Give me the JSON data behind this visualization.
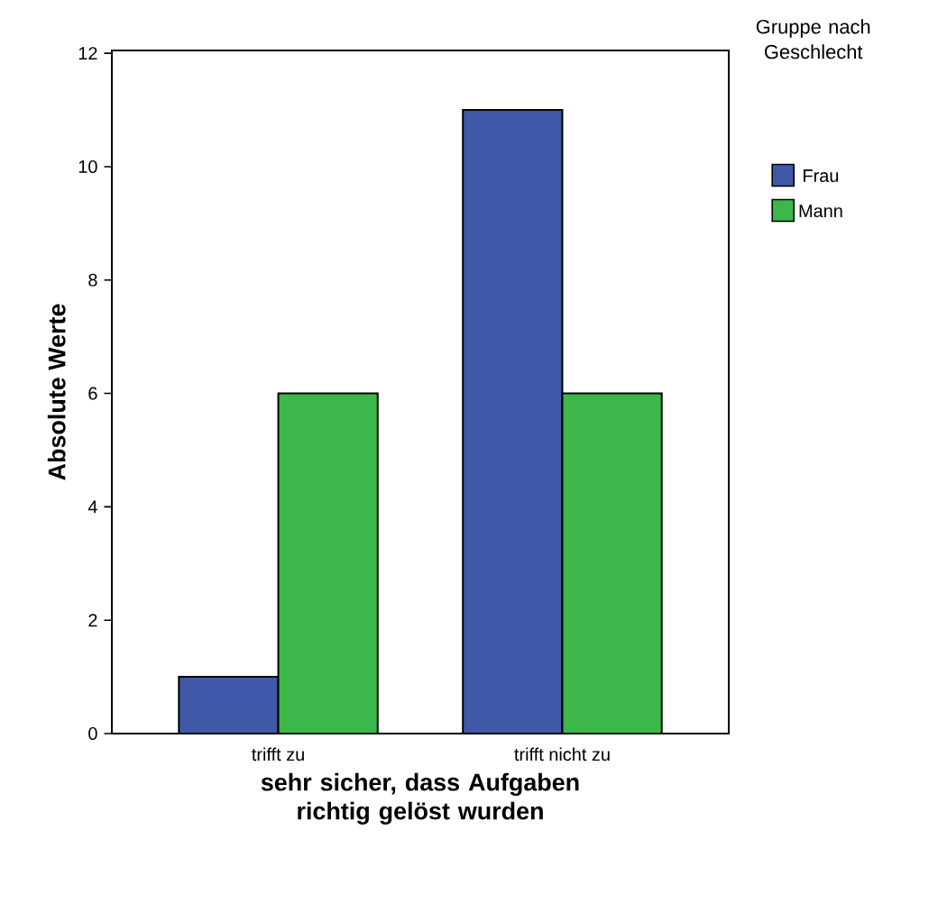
{
  "chart_data": {
    "type": "bar",
    "xlabel": "sehr sicher, dass Aufgaben richtig gelöst wurden",
    "ylabel": "Absolute Werte",
    "legend_title": "Gruppe nach Geschlecht",
    "categories": [
      "trifft zu",
      "trifft nicht zu"
    ],
    "series": [
      {
        "name": "Frau",
        "color": "#3f58a8",
        "values": [
          1,
          11
        ]
      },
      {
        "name": "Mann",
        "color": "#3cb84a",
        "values": [
          6,
          6
        ]
      }
    ],
    "ylim": [
      0,
      12.05
    ],
    "yticks": [
      0,
      2,
      4,
      6,
      8,
      10,
      12
    ],
    "grid": false,
    "legend": "right"
  }
}
